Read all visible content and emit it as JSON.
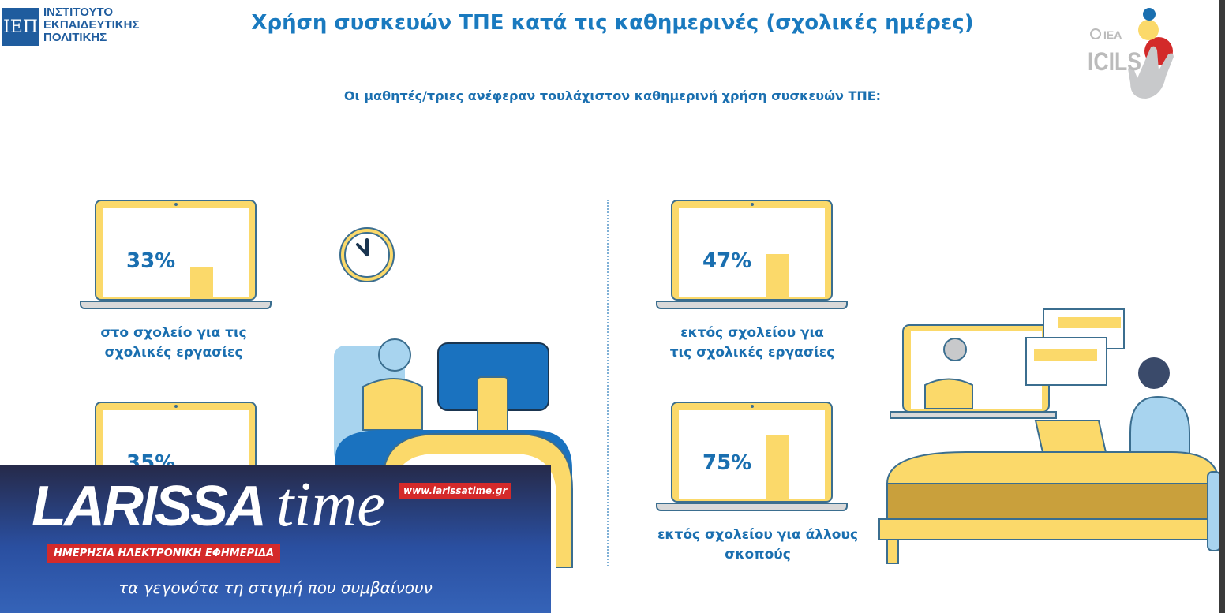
{
  "header": {
    "org_logo_mark": "ΙΕΠ",
    "org_name_lines": [
      "ΙΝΣΤΙΤΟΥΤΟ",
      "ΕΚΠΑΙΔΕΥΤΙΚΗΣ",
      "ΠΟΛΙΤΙΚΗΣ"
    ],
    "title": "Χρήση συσκευών ΤΠΕ κατά τις καθημερινές (σχολικές ημέρες)",
    "partner_logo": {
      "iea": "IEA",
      "icils": "ICILS"
    }
  },
  "subtitle": "Οι μαθητές/τριες ανέφεραν τουλάχιστον καθημερινή χρήση συσκευών ΤΠΕ:",
  "stats": [
    {
      "value": "33%",
      "percent": 33,
      "label_lines": [
        "στο σχολείο για τις",
        "σχολικές εργασίες"
      ]
    },
    {
      "value": "35%",
      "percent": 35,
      "label_lines": [
        "",
        ""
      ]
    },
    {
      "value": "47%",
      "percent": 47,
      "label_lines": [
        "εκτός σχολείου για",
        "τις σχολικές εργασίες"
      ]
    },
    {
      "value": "75%",
      "percent": 75,
      "label_lines": [
        "εκτός σχολείου για άλλους",
        "σκοπούς"
      ]
    }
  ],
  "colors": {
    "accent": "#1a6fb0",
    "bar": "#fbd96a",
    "outline": "#3b6e8f"
  },
  "icons": [
    "clock-icon"
  ],
  "banner": {
    "brand_main": "LARISSA",
    "brand_time": "time",
    "url": "www.larissatime.gr",
    "tagline_red": "ΗΜΕΡΗΣΙΑ ΗΛΕΚΤΡΟΝΙΚΗ ΕΦΗΜΕΡΙΔΑ",
    "slogan": "τα γεγονότα τη στιγμή που συμβαίνουν"
  }
}
